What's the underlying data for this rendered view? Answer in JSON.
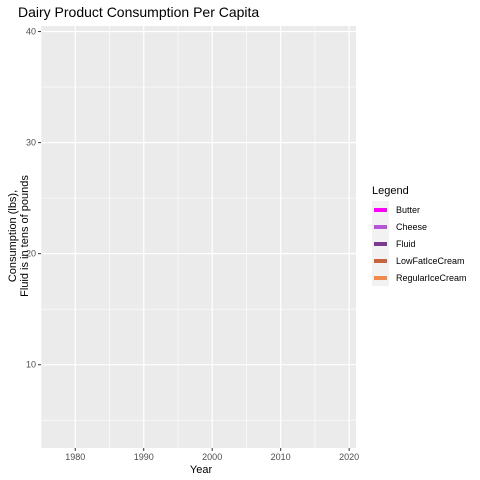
{
  "chart_data": {
    "type": "area",
    "title": "Dairy Product Consumption Per Capita",
    "xlabel": "Year",
    "ylabel_lines": [
      "Consumption (lbs),",
      "Fluid is in tens of pounds"
    ],
    "xlim": [
      1975,
      2021
    ],
    "ylim": [
      2.5,
      40.5
    ],
    "x_ticks": [
      1980,
      1990,
      2000,
      2010,
      2020
    ],
    "y_ticks": [
      10,
      20,
      30,
      40
    ],
    "x_tick_labels": [
      "1980",
      "1990",
      "2000",
      "2010",
      "2020"
    ],
    "y_tick_labels": [
      "10",
      "20",
      "30",
      "40"
    ],
    "grid": true,
    "legend": {
      "title": "Legend",
      "position": "right",
      "entries": [
        {
          "name": "Butter",
          "color": "#ff00ff"
        },
        {
          "name": "Cheese",
          "color": "#b556d6"
        },
        {
          "name": "Fluid",
          "color": "#7a3a8f"
        },
        {
          "name": "LowFatIceCream",
          "color": "#c8643d"
        },
        {
          "name": "RegularIceCream",
          "color": "#f08a4b"
        }
      ]
    },
    "series": [
      {
        "name": "Butter",
        "values": []
      },
      {
        "name": "Cheese",
        "values": []
      },
      {
        "name": "Fluid",
        "values": []
      },
      {
        "name": "LowFatIceCream",
        "values": []
      },
      {
        "name": "RegularIceCream",
        "values": []
      }
    ],
    "colors": {
      "panel_background": "#ebebeb",
      "grid_major": "#ffffff",
      "legend_key_background": "#f2f2f2"
    }
  }
}
